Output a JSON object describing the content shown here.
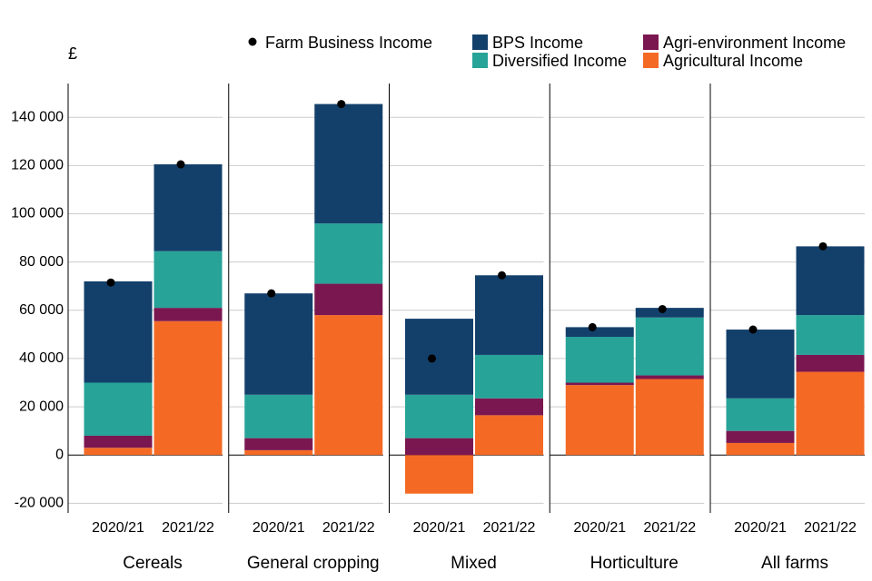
{
  "chart_data": {
    "type": "bar",
    "stacked": true,
    "ylabel": "£",
    "groups": [
      "Cereals",
      "General cropping",
      "Mixed",
      "Horticulture",
      "All farms"
    ],
    "categories": [
      "2020/21",
      "2021/22"
    ],
    "series": [
      {
        "name": "Farm Business Income",
        "color": "#000000",
        "type": "point",
        "values": [
          [
            71500,
            120500
          ],
          [
            67000,
            145500
          ],
          [
            40000,
            74500
          ],
          [
            53000,
            60500
          ],
          [
            52000,
            86500
          ]
        ]
      },
      {
        "name": "BPS Income",
        "color": "#13406b",
        "values": [
          [
            42000,
            36000
          ],
          [
            42000,
            49500
          ],
          [
            31500,
            33000
          ],
          [
            4000,
            4000
          ],
          [
            28500,
            28500
          ]
        ]
      },
      {
        "name": "Agri-environment Income",
        "color": "#7b1750",
        "values": [
          [
            5000,
            5500
          ],
          [
            5000,
            13000
          ],
          [
            7000,
            7000
          ],
          [
            1000,
            1500
          ],
          [
            5000,
            7000
          ]
        ]
      },
      {
        "name": "Diversified Income",
        "color": "#27a398",
        "values": [
          [
            22000,
            23500
          ],
          [
            18000,
            25000
          ],
          [
            18000,
            18000
          ],
          [
            19000,
            24000
          ],
          [
            13500,
            16500
          ]
        ]
      },
      {
        "name": "Agricultural Income",
        "color": "#f46a25",
        "values": [
          [
            3000,
            55500
          ],
          [
            2000,
            58000
          ],
          [
            -16000,
            16500
          ],
          [
            29000,
            31500
          ],
          [
            5000,
            34500
          ]
        ]
      }
    ],
    "stack_order": [
      4,
      2,
      3,
      1
    ],
    "ylim": [
      -24000,
      154000
    ],
    "yticks": [
      {
        "value": -20000,
        "label": "-20 000"
      },
      0,
      {
        "value": 20000,
        "label": "20 000"
      },
      {
        "value": 40000,
        "label": "40 000"
      },
      {
        "value": 60000,
        "label": "60 000"
      },
      {
        "value": 80000,
        "label": "80 000"
      },
      {
        "value": 100000,
        "label": "100 000"
      },
      {
        "value": 120000,
        "label": "120 000"
      },
      {
        "value": 140000,
        "label": "140 000"
      }
    ],
    "grid": true
  }
}
